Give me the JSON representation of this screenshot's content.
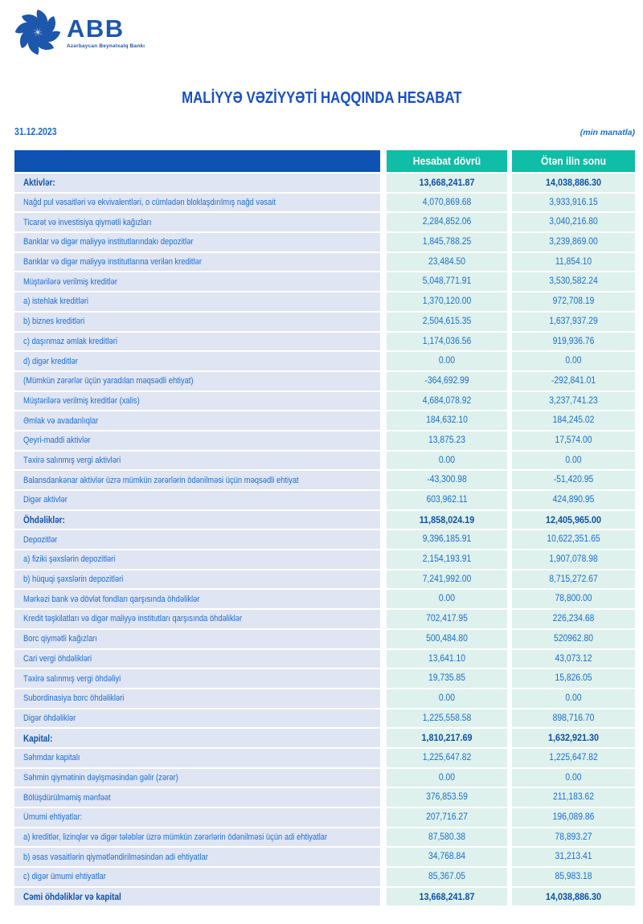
{
  "logo": {
    "wordmark": "ABB",
    "tagline": "Azərbaycan Beynəlxalq Bankı"
  },
  "title": "MALİYYƏ VƏZİYYƏTİ HAQQINDA HESABAT",
  "meta": {
    "date": "31.12.2023",
    "unit_note": "(min manatla)"
  },
  "colors": {
    "logo_blue": "#1d57ac",
    "title_blue": "#1850c4",
    "header_block_blue": "#0e52b4",
    "header_teal": "#10bda6",
    "label_cell_bg": "#e0e5f3",
    "value_cell_bg": "#def1ec",
    "text_blue": "#1b6ed2",
    "text_navy": "#0f51a8"
  },
  "table": {
    "columns": [
      "Hesabat dövrü",
      "Ötən ilin sonu"
    ],
    "rows": [
      {
        "label": "Aktivlər:",
        "current": "13,668,241.87",
        "previous": "14,038,886.30",
        "bold": true
      },
      {
        "label": "Nağd pul vəsaitləri və  ekvivalentləri, o cümlədən bloklaşdırılmış nağd vəsait",
        "current": "4,070,869.68",
        "previous": "3,933,916.15",
        "bold": false
      },
      {
        "label": "Ticarət və investisiya qiymətli kağızları",
        "current": "2,284,852.06",
        "previous": "3,040,216.80",
        "bold": false
      },
      {
        "label": "Banklar və digər maliyyə institutlarındakı depozitlər",
        "current": "1,845,788.25",
        "previous": "3,239,869.00",
        "bold": false
      },
      {
        "label": "Banklar və digər maliyyə institutlarına verilən kreditlər",
        "current": "23,484.50",
        "previous": "11,854.10",
        "bold": false
      },
      {
        "label": "Müştərilərə verilmiş kreditlər",
        "current": "5,048,771.91",
        "previous": "3,530,582.24",
        "bold": false
      },
      {
        "label": "a) istehlak kreditləri",
        "current": "1,370,120.00",
        "previous": "972,708.19",
        "bold": false
      },
      {
        "label": "b) biznes kreditləri",
        "current": "2,504,615.35",
        "previous": "1,637,937.29",
        "bold": false
      },
      {
        "label": "c) daşınmaz əmlak kreditləri",
        "current": "1,174,036.56",
        "previous": "919,936.76",
        "bold": false
      },
      {
        "label": "d) digər kreditlər",
        "current": "0.00",
        "previous": "0.00",
        "bold": false
      },
      {
        "label": "(Mümkün zərərlər üçün yaradılan məqsədli ehtiyat)",
        "current": "-364,692.99",
        "previous": "-292,841.01",
        "bold": false
      },
      {
        "label": "Müştərilərə verilmiş kreditlər (xalis)",
        "current": "4,684,078.92",
        "previous": "3,237,741.23",
        "bold": false
      },
      {
        "label": "Əmlak və avadanlıqlar",
        "current": "184,632.10",
        "previous": "184,245.02",
        "bold": false
      },
      {
        "label": "Qeyri-maddi aktivlər",
        "current": "13,875.23",
        "previous": "17,574.00",
        "bold": false
      },
      {
        "label": "Təxirə salınmış vergi aktivləri",
        "current": "0.00",
        "previous": "0.00",
        "bold": false
      },
      {
        "label": "Balansdankənar aktivlər üzrə mümkün zərərlərin ödənilməsi üçün məqsədli ehtiyat",
        "current": "-43,300.98",
        "previous": "-51,420.95",
        "bold": false
      },
      {
        "label": "Digər aktivlər",
        "current": "603,962.11",
        "previous": "424,890.95",
        "bold": false
      },
      {
        "label": "Öhdəliklər:",
        "current": "11,858,024.19",
        "previous": "12,405,965.00",
        "bold": true
      },
      {
        "label": "Depozitlər",
        "current": "9,396,185.91",
        "previous": "10,622,351.65",
        "bold": false
      },
      {
        "label": "a) fiziki şəxslərin depozitləri",
        "current": "2,154,193.91",
        "previous": "1,907,078.98",
        "bold": false
      },
      {
        "label": "b) hüquqi şəxslərin depozitləri",
        "current": "7,241,992.00",
        "previous": "8,715,272.67",
        "bold": false
      },
      {
        "label": "Mərkəzi bank və dövlət fondları qarşısında öhdəliklər",
        "current": "0.00",
        "previous": "78,800.00",
        "bold": false
      },
      {
        "label": "Kredit təşkilatları və digər maliyyə institutları qarşısında öhdəliklər",
        "current": "702,417.95",
        "previous": "226,234.68",
        "bold": false
      },
      {
        "label": "Borc qiymətli kağızları",
        "current": "500,484.80",
        "previous": "520962.80",
        "bold": false
      },
      {
        "label": "Cari vergi öhdəlikləri",
        "current": "13,641.10",
        "previous": "43,073.12",
        "bold": false
      },
      {
        "label": "Təxirə salınmış vergi öhdəliyi",
        "current": "19,735.85",
        "previous": "15,826.05",
        "bold": false
      },
      {
        "label": "Subordinasiya borc öhdəlikləri",
        "current": "0.00",
        "previous": "0.00",
        "bold": false
      },
      {
        "label": "Digər öhdəliklər",
        "current": "1,225,558.58",
        "previous": "898,716.70",
        "bold": false
      },
      {
        "label": "Kapital:",
        "current": "1,810,217.69",
        "previous": "1,632,921.30",
        "bold": true
      },
      {
        "label": "Səhmdar kapitalı",
        "current": "1,225,647.82",
        "previous": "1,225,647.82",
        "bold": false
      },
      {
        "label": "Səhmin qiymətinin dəyişməsindən gəlir (zərər)",
        "current": "0.00",
        "previous": "0.00",
        "bold": false
      },
      {
        "label": "Bölüşdürülməmiş mənfəət",
        "current": "376,853.59",
        "previous": "211,183.62",
        "bold": false
      },
      {
        "label": "Ümumi ehtiyatlar:",
        "current": "207,716.27",
        "previous": "196,089.86",
        "bold": false
      },
      {
        "label": "a) kreditlər, lizinqlər və digər tələblər üzrə mümkün zərərlərin ödənilməsi üçün adi ehtiyatlar",
        "current": "87,580.38",
        "previous": "78,893.27",
        "bold": false
      },
      {
        "label": "b) əsas vəsaitlərin qiymətləndirilməsindən adi ehtiyatlar",
        "current": "34,768.84",
        "previous": "31,213.41",
        "bold": false
      },
      {
        "label": "c) digər ümumi ehtiyatlar",
        "current": "85,367.05",
        "previous": "85,983.18",
        "bold": false
      },
      {
        "label": "Cəmi öhdəliklər və kapital",
        "current": "13,668,241.87",
        "previous": "14,038,886.30",
        "bold": true
      }
    ]
  }
}
